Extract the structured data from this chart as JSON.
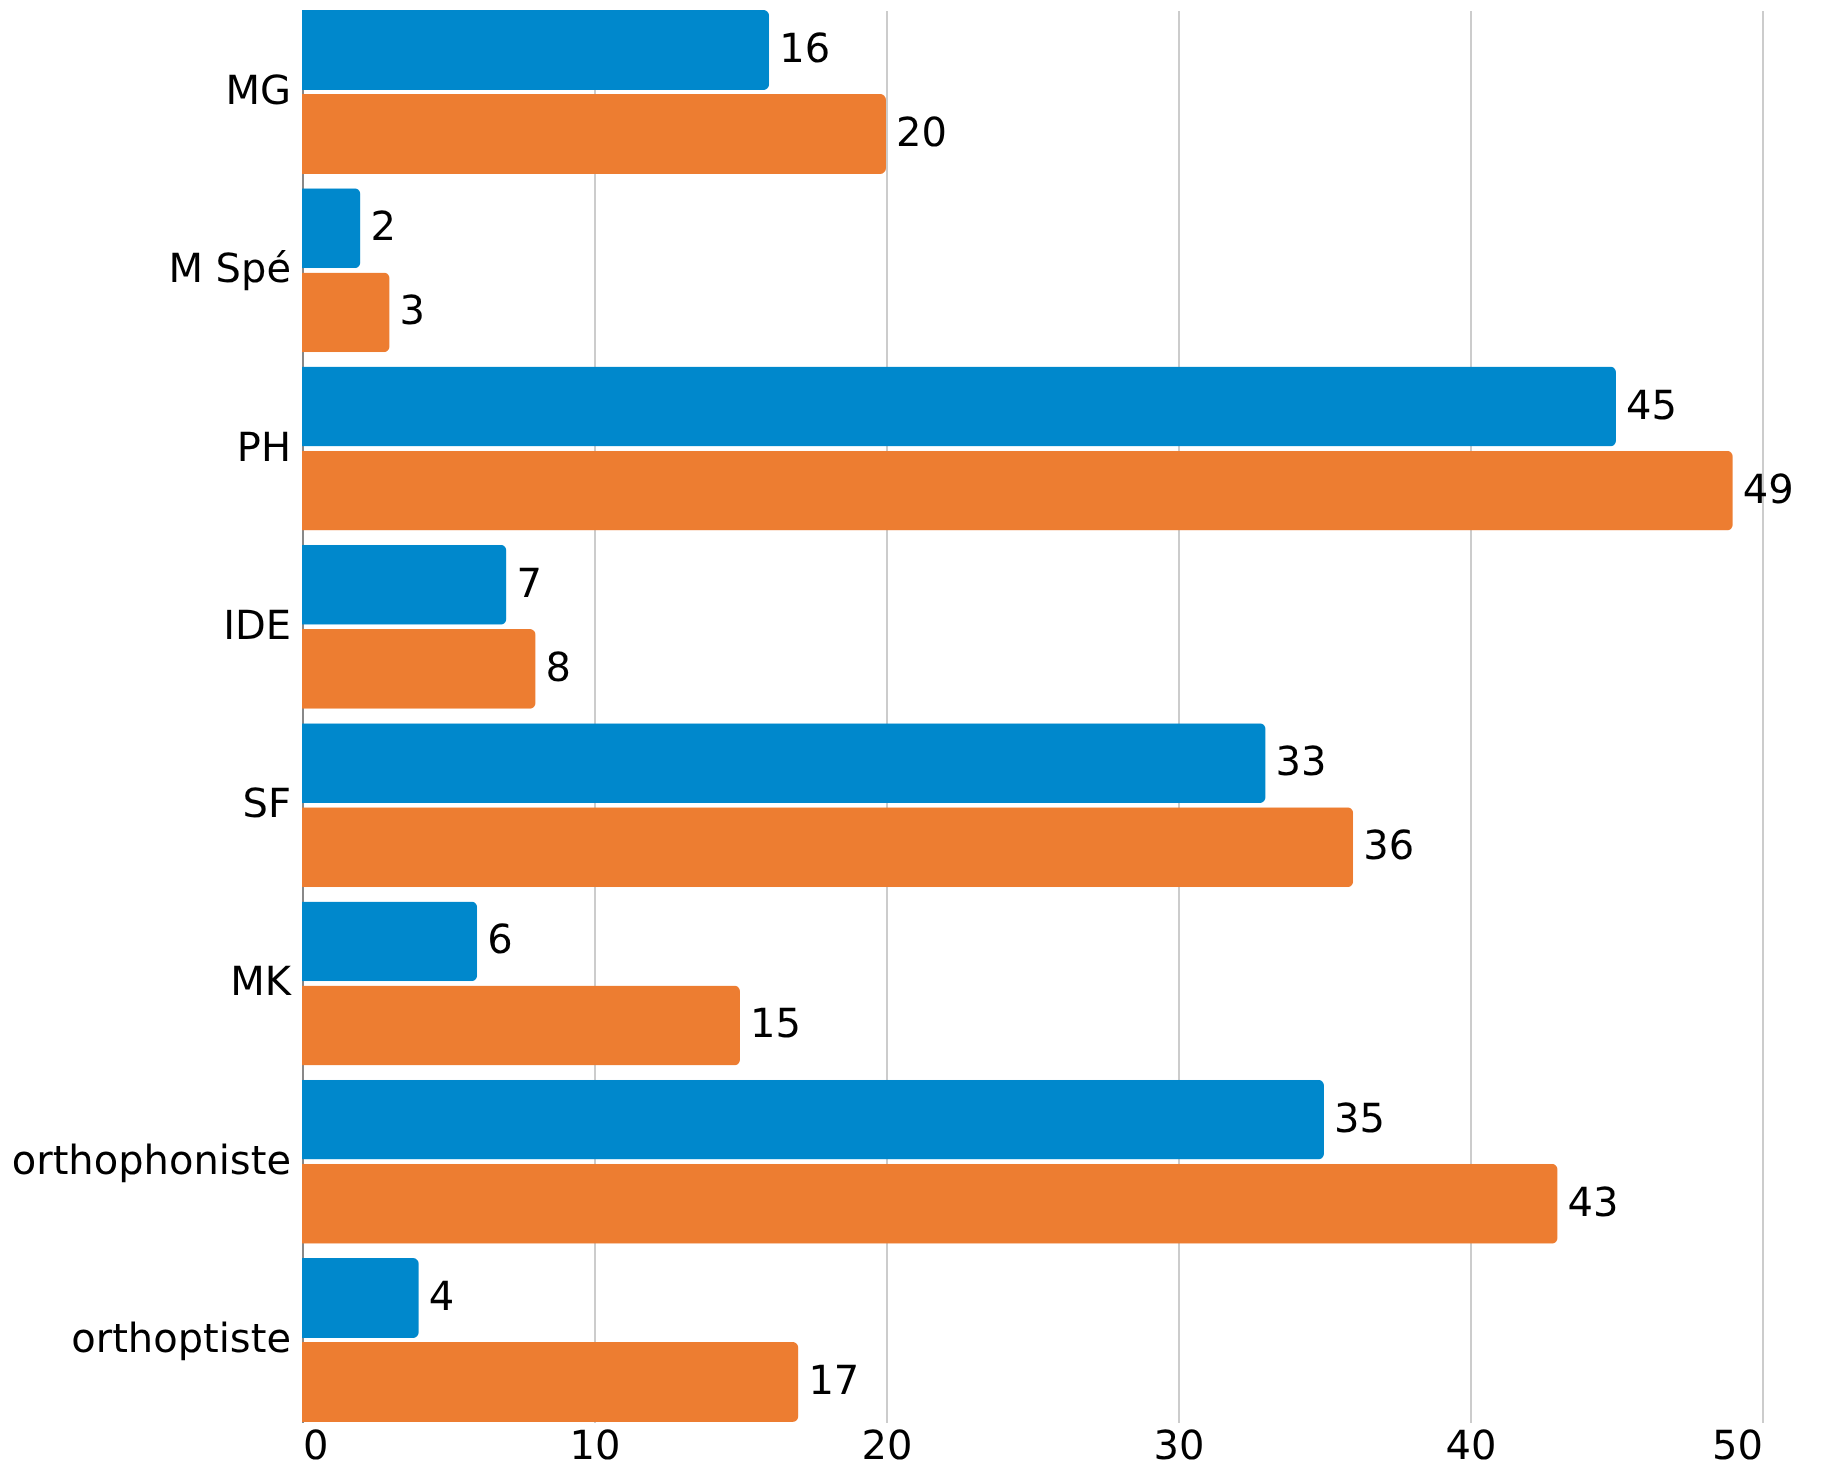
{
  "chart_data": {
    "type": "bar",
    "orientation": "horizontal",
    "categories": [
      "MG",
      "M Spé",
      "PH",
      "IDE",
      "SF",
      "MK",
      "orthophoniste",
      "orthoptiste"
    ],
    "series": [
      {
        "color": "#0088cc",
        "values": [
          16,
          2,
          45,
          7,
          33,
          6,
          35,
          4
        ]
      },
      {
        "color": "#ed7d31",
        "values": [
          20,
          3,
          49,
          8,
          36,
          15,
          43,
          17
        ]
      }
    ],
    "xlim": [
      0,
      50
    ],
    "xticks": [
      0,
      10,
      20,
      30,
      40,
      50
    ],
    "grid": "x",
    "legend": false,
    "data_labels": true
  }
}
